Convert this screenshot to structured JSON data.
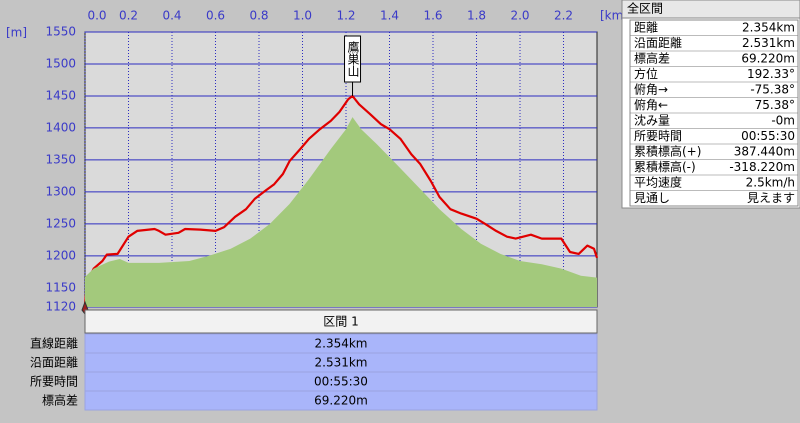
{
  "chart_data": {
    "type": "line",
    "x_unit": "[km]",
    "y_unit": "[m]",
    "annotation": "鷹巣山",
    "xlim": [
      0,
      2.354
    ],
    "ylim": [
      1120,
      1550
    ],
    "xticks": [
      {
        "value": 0,
        "label": "0.0"
      },
      0.2,
      0.4,
      0.6,
      0.8,
      {
        "value": 1,
        "label": "1.0"
      },
      1.2,
      1.4,
      1.6,
      1.8,
      {
        "value": 2,
        "label": "2.0"
      },
      2.2
    ],
    "yticks": [
      1120,
      1150,
      1200,
      1250,
      1300,
      1350,
      1400,
      1450,
      1500,
      1550
    ],
    "grid": true,
    "series": [
      {
        "color": "#e00000",
        "x": [
          0,
          0.01,
          0.04,
          0.08,
          0.1,
          0.15,
          0.2,
          0.24,
          0.32,
          0.34,
          0.37,
          0.43,
          0.46,
          0.53,
          0.6,
          0.64,
          0.69,
          0.74,
          0.78,
          0.83,
          0.87,
          0.91,
          0.94,
          0.99,
          1.03,
          1.08,
          1.13,
          1.17,
          1.21,
          1.23,
          1.26,
          1.31,
          1.36,
          1.4,
          1.45,
          1.5,
          1.54,
          1.59,
          1.63,
          1.68,
          1.73,
          1.8,
          1.84,
          1.89,
          1.94,
          1.98,
          2.05,
          2.1,
          2.14,
          2.19,
          2.23,
          2.27,
          2.31,
          2.34,
          2.354
        ],
        "values": [
          1124,
          1159,
          1180,
          1192,
          1202,
          1203,
          1230,
          1239,
          1242,
          1239,
          1233,
          1236,
          1242,
          1241,
          1239,
          1245,
          1261,
          1273,
          1289,
          1302,
          1312,
          1328,
          1348,
          1367,
          1383,
          1398,
          1411,
          1425,
          1445,
          1450,
          1437,
          1422,
          1406,
          1398,
          1383,
          1359,
          1344,
          1317,
          1292,
          1273,
          1266,
          1258,
          1250,
          1239,
          1230,
          1227,
          1233,
          1227,
          1227,
          1227,
          1206,
          1203,
          1216,
          1211,
          1197
        ]
      },
      {
        "color": "#a3c97c",
        "fill": true,
        "x": [
          0,
          0.04,
          0.11,
          0.16,
          0.2,
          0.34,
          0.48,
          0.57,
          0.67,
          0.76,
          0.85,
          0.94,
          1.03,
          1.13,
          1.2,
          1.23,
          1.27,
          1.34,
          1.43,
          1.54,
          1.63,
          1.73,
          1.82,
          1.91,
          2.0,
          2.1,
          2.19,
          2.28,
          2.354
        ],
        "values": [
          1167,
          1180,
          1191,
          1195,
          1189,
          1189,
          1192,
          1200,
          1211,
          1227,
          1250,
          1281,
          1320,
          1367,
          1398,
          1417,
          1398,
          1375,
          1344,
          1305,
          1273,
          1242,
          1219,
          1203,
          1192,
          1187,
          1180,
          1169,
          1166
        ]
      }
    ]
  },
  "section_table": {
    "header": "区間 1",
    "rows": [
      [
        "直線距離",
        "2.354km"
      ],
      [
        "沿面距離",
        "2.531km"
      ],
      [
        "所要時間",
        "00:55:30"
      ],
      [
        "標高差",
        "69.220m"
      ]
    ]
  },
  "summary_panel": {
    "title": "全区間",
    "rows": [
      [
        "距離",
        "2.354km"
      ],
      [
        "沿面距離",
        "2.531km"
      ],
      [
        "標高差",
        "69.220m"
      ],
      [
        "方位",
        "192.33°"
      ],
      [
        "俯角→",
        "-75.38°"
      ],
      [
        "俯角←",
        "75.38°"
      ],
      [
        "沈み量",
        "-0m"
      ],
      [
        "所要時間",
        "00:55:30"
      ],
      [
        "累積標高(+)",
        "387.440m"
      ],
      [
        "累積標高(-)",
        "-318.220m"
      ],
      [
        "平均速度",
        "2.5km/h"
      ],
      [
        "見通し",
        "見えます"
      ]
    ]
  }
}
